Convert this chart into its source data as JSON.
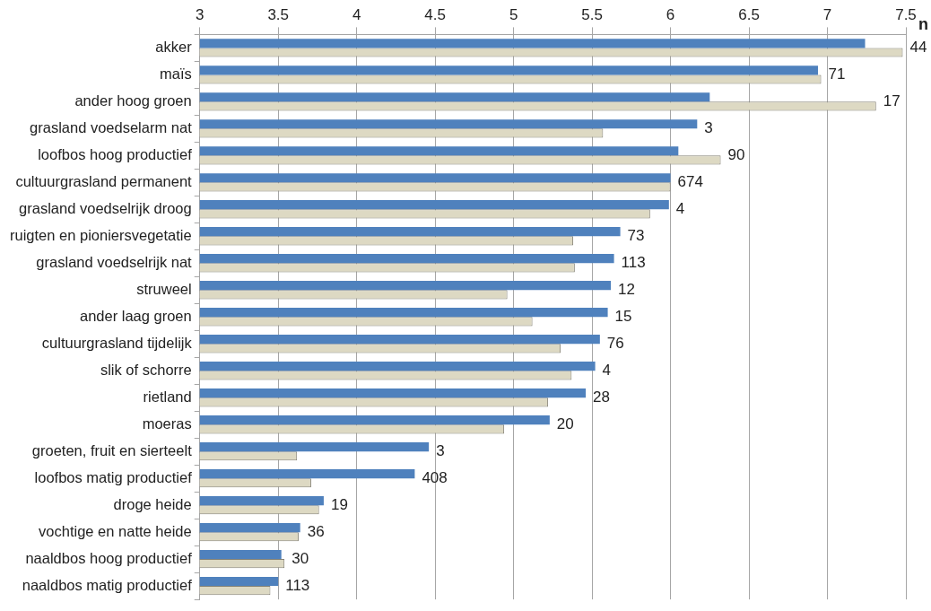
{
  "chart_data": {
    "type": "bar",
    "orientation": "horizontal",
    "categories": [
      "akker",
      "maïs",
      "ander hoog groen",
      "grasland voedselarm nat",
      "loofbos hoog productief",
      "cultuurgrasland permanent",
      "grasland voedselrijk droog",
      "ruigten en pioniersvegetatie",
      "grasland voedselrijk nat",
      "struweel",
      "ander laag groen",
      "cultuurgrasland tijdelijk",
      "slik of schorre",
      "rietland",
      "moeras",
      "groeten, fruit en sierteelt",
      "loofbos matig productief",
      "droge heide",
      "vochtige en natte heide",
      "naaldbos hoog productief",
      "naaldbos matig productief"
    ],
    "series": [
      {
        "color": "#4f81bd",
        "values": [
          7.24,
          6.94,
          6.25,
          6.17,
          6.05,
          6.0,
          5.99,
          5.68,
          5.64,
          5.62,
          5.6,
          5.55,
          5.52,
          5.46,
          5.23,
          4.46,
          4.37,
          3.79,
          3.64,
          3.52,
          3.5
        ]
      },
      {
        "color": "#ddd9c3",
        "values": [
          7.48,
          6.96,
          7.31,
          5.57,
          6.32,
          6.0,
          5.87,
          5.38,
          5.39,
          4.96,
          5.12,
          5.3,
          5.37,
          5.22,
          4.94,
          3.62,
          3.71,
          3.76,
          3.63,
          3.54,
          3.45
        ]
      }
    ],
    "xlim": [
      3,
      7.5
    ],
    "xticks": [
      3,
      3.5,
      4,
      4.5,
      5,
      5.5,
      6,
      6.5,
      7,
      7.5
    ],
    "grid": "x",
    "legend": false,
    "annotations": [
      "n",
      {
        "text": "44",
        "x": 7.48,
        "y": "akker"
      },
      {
        "text": "71",
        "x": 6.96,
        "y": "maïs"
      },
      {
        "text": "17",
        "x": 7.31,
        "y": "ander hoog groen"
      },
      {
        "text": "3",
        "x": 6.17,
        "y": "grasland voedselarm nat"
      },
      {
        "text": "90",
        "x": 6.32,
        "y": "loofbos hoog productief"
      },
      {
        "text": "674",
        "x": 6.0,
        "y": "cultuurgrasland permanent"
      },
      {
        "text": "4",
        "x": 5.99,
        "y": "grasland voedselrijk droog"
      },
      {
        "text": "73",
        "x": 5.68,
        "y": "ruigten en pioniersvegetatie"
      },
      {
        "text": "113",
        "x": 5.64,
        "y": "grasland voedselrijk nat"
      },
      {
        "text": "12",
        "x": 5.62,
        "y": "struweel"
      },
      {
        "text": "15",
        "x": 5.6,
        "y": "ander laag groen"
      },
      {
        "text": "76",
        "x": 5.55,
        "y": "cultuurgrasland tijdelijk"
      },
      {
        "text": "4",
        "x": 5.52,
        "y": "slik of schorre"
      },
      {
        "text": "28",
        "x": 5.46,
        "y": "rietland"
      },
      {
        "text": "20",
        "x": 5.23,
        "y": "moeras"
      },
      {
        "text": "3",
        "x": 4.46,
        "y": "groeten, fruit en sierteelt"
      },
      {
        "text": "408",
        "x": 4.37,
        "y": "loofbos matig productief"
      },
      {
        "text": "19",
        "x": 3.79,
        "y": "droge heide"
      },
      {
        "text": "36",
        "x": 3.64,
        "y": "vochtige en natte heide"
      },
      {
        "text": "30",
        "x": 3.54,
        "y": "naaldbos hoog productief"
      },
      {
        "text": "113",
        "x": 3.5,
        "y": "naaldbos matig productief"
      }
    ]
  }
}
